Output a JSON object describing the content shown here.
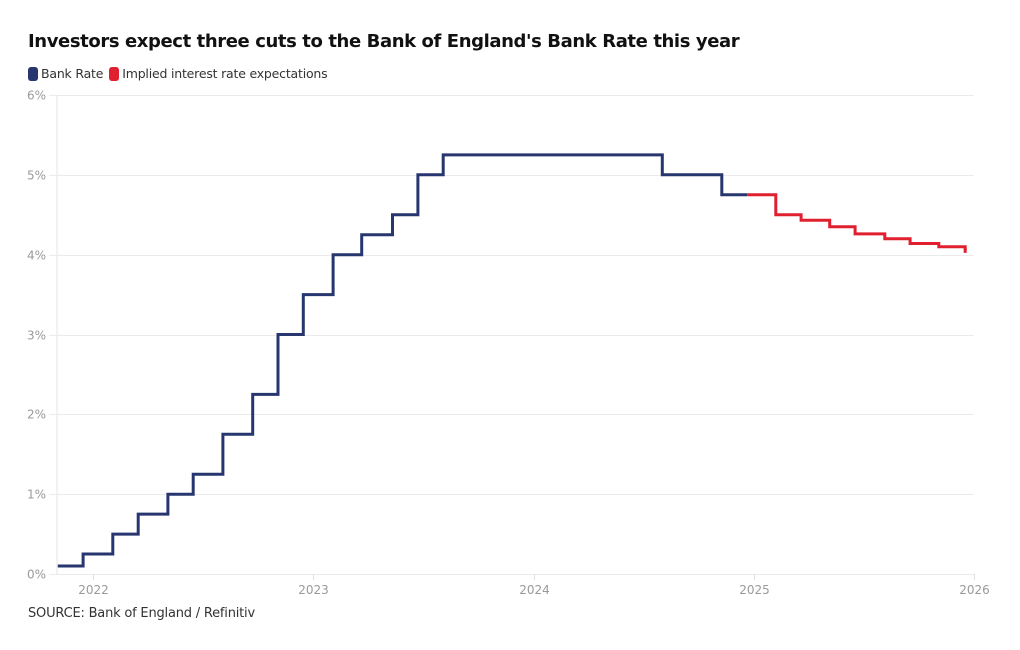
{
  "chart_data": {
    "type": "line",
    "step": true,
    "title": "Investors expect three cuts to the Bank of England's Bank Rate this year",
    "xlabel": "",
    "ylabel": "",
    "xlim": [
      2021.84,
      2026.0
    ],
    "ylim": [
      0,
      6
    ],
    "grid": true,
    "legend_position": "top-left",
    "x_ticks": [
      {
        "value": 2022,
        "label": "2022"
      },
      {
        "value": 2023,
        "label": "2023"
      },
      {
        "value": 2024,
        "label": "2024"
      },
      {
        "value": 2025,
        "label": "2025"
      },
      {
        "value": 2026,
        "label": "2026"
      }
    ],
    "y_ticks": [
      {
        "value": 0,
        "label": "0%"
      },
      {
        "value": 1,
        "label": "1%"
      },
      {
        "value": 2,
        "label": "2%"
      },
      {
        "value": 3,
        "label": "3%"
      },
      {
        "value": 4,
        "label": "4%"
      },
      {
        "value": 5,
        "label": "5%"
      },
      {
        "value": 6,
        "label": "6%"
      }
    ],
    "series": [
      {
        "name": "Bank Rate",
        "color": "#27366f",
        "points": [
          {
            "x": 2021.84,
            "y": 0.1
          },
          {
            "x": 2021.955,
            "y": 0.25
          },
          {
            "x": 2022.09,
            "y": 0.5
          },
          {
            "x": 2022.205,
            "y": 0.75
          },
          {
            "x": 2022.34,
            "y": 1.0
          },
          {
            "x": 2022.455,
            "y": 1.25
          },
          {
            "x": 2022.59,
            "y": 1.75
          },
          {
            "x": 2022.725,
            "y": 2.25
          },
          {
            "x": 2022.84,
            "y": 3.0
          },
          {
            "x": 2022.955,
            "y": 3.5
          },
          {
            "x": 2023.09,
            "y": 4.0
          },
          {
            "x": 2023.22,
            "y": 4.25
          },
          {
            "x": 2023.36,
            "y": 4.5
          },
          {
            "x": 2023.475,
            "y": 5.0
          },
          {
            "x": 2023.59,
            "y": 5.25
          },
          {
            "x": 2024.585,
            "y": 5.0
          },
          {
            "x": 2024.855,
            "y": 4.75
          }
        ],
        "end_x": 2024.97
      },
      {
        "name": "Implied interest rate expectations",
        "color": "#e0202f",
        "points": [
          {
            "x": 2024.97,
            "y": 4.75
          },
          {
            "x": 2025.1,
            "y": 4.5
          },
          {
            "x": 2025.215,
            "y": 4.43
          },
          {
            "x": 2025.345,
            "y": 4.35
          },
          {
            "x": 2025.46,
            "y": 4.26
          },
          {
            "x": 2025.595,
            "y": 4.2
          },
          {
            "x": 2025.71,
            "y": 4.14
          },
          {
            "x": 2025.84,
            "y": 4.1
          },
          {
            "x": 2025.96,
            "y": 4.06
          }
        ],
        "end_x": 2025.96
      }
    ]
  },
  "legend": [
    {
      "label": "Bank Rate",
      "color": "#27366f"
    },
    {
      "label": "Implied interest rate expectations",
      "color": "#e0202f"
    }
  ],
  "source": "SOURCE: Bank of England / Refinitiv"
}
